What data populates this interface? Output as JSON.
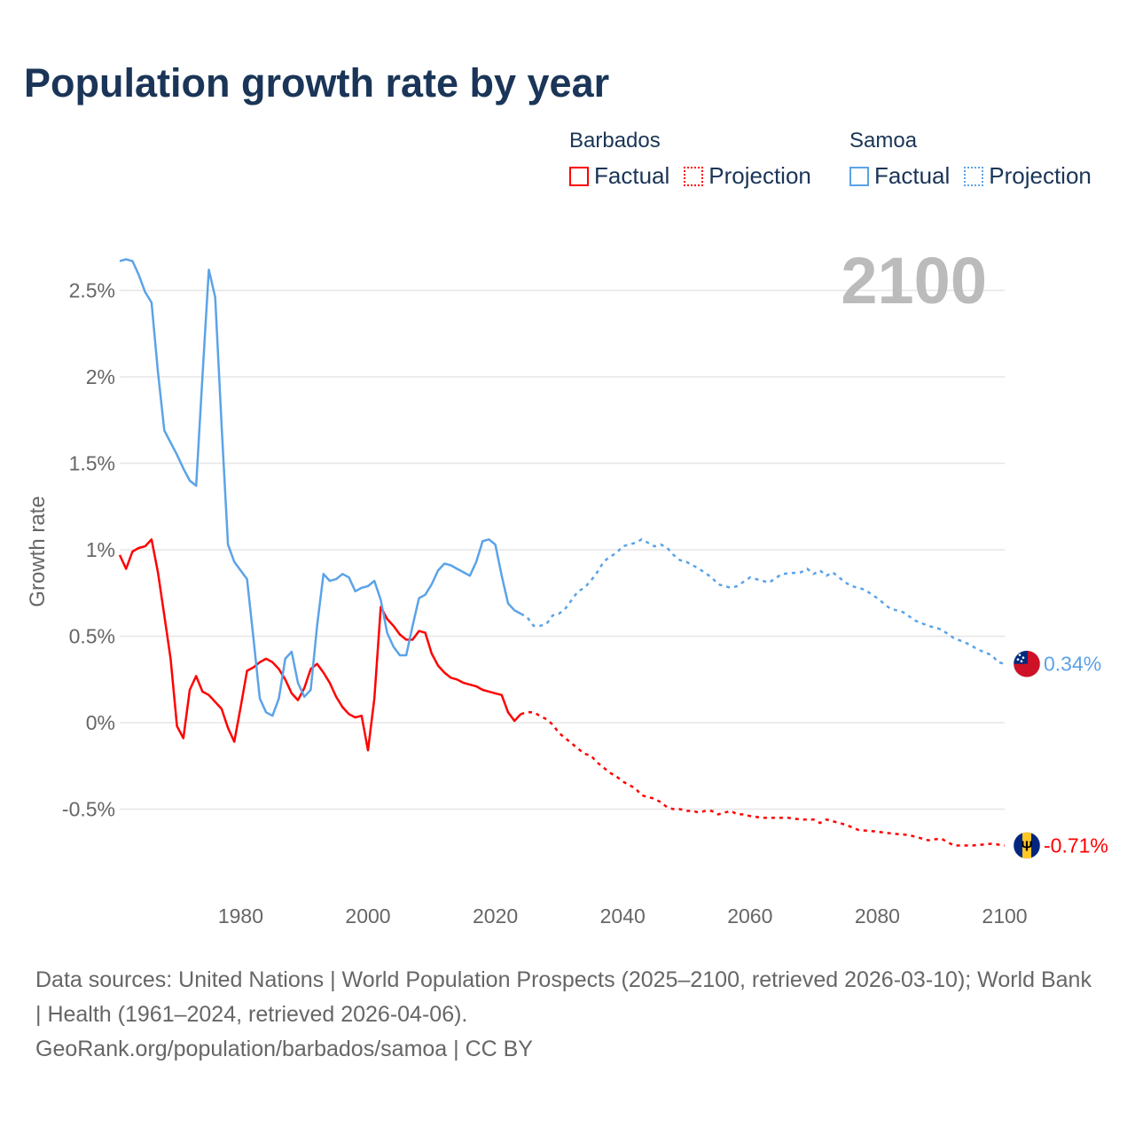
{
  "title": "Population growth rate by year",
  "legend": {
    "groups": [
      {
        "name": "Barbados",
        "color": "#ff0000",
        "items": [
          "Factual",
          "Projection"
        ]
      },
      {
        "name": "Samoa",
        "color": "#5ba3e8",
        "items": [
          "Factual",
          "Projection"
        ]
      }
    ]
  },
  "year_label": "2100",
  "footer": {
    "sources": "Data sources: United Nations | World Population Prospects (2025–2100, retrieved 2026-03-10); World Bank | Health (1961–2024, retrieved 2026-04-06).",
    "credit": "GeoRank.org/population/barbados/samoa | CC BY"
  },
  "chart_data": {
    "type": "line",
    "title": "Population growth rate by year",
    "xlabel": "",
    "ylabel": "Growth rate",
    "xlim": [
      1961,
      2100
    ],
    "ylim": [
      -0.85,
      2.75
    ],
    "x_ticks": [
      1980,
      2000,
      2020,
      2040,
      2060,
      2080,
      2100
    ],
    "x_tick_labels": [
      "1980",
      "2000",
      "2020",
      "2040",
      "2060",
      "2080",
      "2100"
    ],
    "y_ticks": [
      -0.5,
      0,
      0.5,
      1,
      1.5,
      2,
      2.5
    ],
    "y_tick_labels": [
      "-0.5%",
      "0%",
      "0.5%",
      "1%",
      "1.5%",
      "2%",
      "2.5%"
    ],
    "grid": true,
    "legend_position": "top-right",
    "series": [
      {
        "name": "Barbados",
        "color": "#ff0000",
        "end_label": "-0.71%",
        "factual": {
          "x": [
            1961,
            1962,
            1963,
            1964,
            1965,
            1966,
            1967,
            1968,
            1969,
            1970,
            1971,
            1972,
            1973,
            1974,
            1975,
            1976,
            1977,
            1978,
            1979,
            1980,
            1981,
            1982,
            1983,
            1984,
            1985,
            1986,
            1987,
            1988,
            1989,
            1990,
            1991,
            1992,
            1993,
            1994,
            1995,
            1996,
            1997,
            1998,
            1999,
            2000,
            2001,
            2002,
            2003,
            2004,
            2005,
            2006,
            2007,
            2008,
            2009,
            2010,
            2011,
            2012,
            2013,
            2014,
            2015,
            2016,
            2017,
            2018,
            2019,
            2020,
            2021,
            2022,
            2023,
            2024
          ],
          "y": [
            0.97,
            0.89,
            0.99,
            1.01,
            1.02,
            1.06,
            0.87,
            0.62,
            0.37,
            -0.02,
            -0.09,
            0.19,
            0.27,
            0.18,
            0.16,
            0.12,
            0.08,
            -0.03,
            -0.11,
            0.09,
            0.3,
            0.32,
            0.35,
            0.37,
            0.35,
            0.31,
            0.25,
            0.17,
            0.13,
            0.2,
            0.31,
            0.34,
            0.29,
            0.23,
            0.15,
            0.09,
            0.05,
            0.03,
            0.04,
            -0.16,
            0.14,
            0.67,
            0.6,
            0.56,
            0.51,
            0.48,
            0.48,
            0.53,
            0.52,
            0.4,
            0.33,
            0.29,
            0.26,
            0.25,
            0.23,
            0.22,
            0.21,
            0.19,
            0.18,
            0.17,
            0.16,
            0.06,
            0.01,
            0.05
          ]
        },
        "projection": {
          "x": [
            2024,
            2025,
            2026,
            2027,
            2028,
            2029,
            2030,
            2031,
            2032,
            2033,
            2034,
            2035,
            2036,
            2037,
            2038,
            2039,
            2040,
            2041,
            2042,
            2043,
            2044,
            2045,
            2046,
            2047,
            2048,
            2049,
            2050,
            2051,
            2052,
            2053,
            2054,
            2055,
            2056,
            2057,
            2058,
            2059,
            2060,
            2062,
            2064,
            2066,
            2068,
            2070,
            2071,
            2072,
            2074,
            2075,
            2077,
            2080,
            2082,
            2085,
            2088,
            2090,
            2092,
            2095,
            2098,
            2100
          ],
          "y": [
            0.05,
            0.06,
            0.06,
            0.04,
            0.02,
            -0.01,
            -0.06,
            -0.09,
            -0.12,
            -0.15,
            -0.18,
            -0.19,
            -0.23,
            -0.26,
            -0.29,
            -0.31,
            -0.34,
            -0.36,
            -0.38,
            -0.42,
            -0.43,
            -0.44,
            -0.46,
            -0.49,
            -0.5,
            -0.5,
            -0.51,
            -0.51,
            -0.52,
            -0.51,
            -0.51,
            -0.53,
            -0.52,
            -0.51,
            -0.53,
            -0.53,
            -0.54,
            -0.55,
            -0.55,
            -0.55,
            -0.56,
            -0.56,
            -0.58,
            -0.56,
            -0.58,
            -0.59,
            -0.62,
            -0.63,
            -0.64,
            -0.65,
            -0.68,
            -0.67,
            -0.71,
            -0.71,
            -0.7,
            -0.71
          ]
        }
      },
      {
        "name": "Samoa",
        "color": "#5ba3e8",
        "end_label": "0.34%",
        "factual": {
          "x": [
            1961,
            1962,
            1963,
            1964,
            1965,
            1966,
            1967,
            1968,
            1969,
            1970,
            1971,
            1972,
            1973,
            1974,
            1975,
            1976,
            1977,
            1978,
            1979,
            1980,
            1981,
            1982,
            1983,
            1984,
            1985,
            1986,
            1987,
            1988,
            1989,
            1990,
            1991,
            1992,
            1993,
            1994,
            1995,
            1996,
            1997,
            1998,
            1999,
            2000,
            2001,
            2002,
            2003,
            2004,
            2005,
            2006,
            2007,
            2008,
            2009,
            2010,
            2011,
            2012,
            2013,
            2014,
            2015,
            2016,
            2017,
            2018,
            2019,
            2020,
            2021,
            2022,
            2023,
            2024
          ],
          "y": [
            2.67,
            2.68,
            2.67,
            2.59,
            2.49,
            2.43,
            2.03,
            1.69,
            1.62,
            1.55,
            1.47,
            1.4,
            1.37,
            2.0,
            2.62,
            2.46,
            1.72,
            1.03,
            0.93,
            0.88,
            0.83,
            0.49,
            0.14,
            0.06,
            0.04,
            0.14,
            0.37,
            0.41,
            0.23,
            0.15,
            0.19,
            0.56,
            0.86,
            0.82,
            0.83,
            0.86,
            0.84,
            0.76,
            0.78,
            0.79,
            0.82,
            0.71,
            0.52,
            0.44,
            0.39,
            0.39,
            0.56,
            0.72,
            0.74,
            0.8,
            0.88,
            0.92,
            0.91,
            0.89,
            0.87,
            0.85,
            0.93,
            1.05,
            1.06,
            1.03,
            0.85,
            0.69,
            0.65,
            0.63
          ]
        },
        "projection": {
          "x": [
            2024,
            2025,
            2026,
            2027,
            2028,
            2029,
            2030,
            2031,
            2032,
            2033,
            2034,
            2035,
            2036,
            2037,
            2038,
            2039,
            2040,
            2041,
            2042,
            2043,
            2044,
            2045,
            2046,
            2047,
            2048,
            2049,
            2050,
            2052,
            2054,
            2055,
            2057,
            2058,
            2060,
            2062,
            2063,
            2065,
            2068,
            2069,
            2070,
            2071,
            2072,
            2073,
            2075,
            2076,
            2078,
            2080,
            2082,
            2084,
            2086,
            2088,
            2090,
            2092,
            2094,
            2096,
            2098,
            2099,
            2100
          ],
          "y": [
            0.63,
            0.61,
            0.56,
            0.56,
            0.57,
            0.62,
            0.63,
            0.66,
            0.71,
            0.76,
            0.78,
            0.82,
            0.87,
            0.93,
            0.96,
            0.98,
            1.02,
            1.03,
            1.04,
            1.06,
            1.04,
            1.02,
            1.03,
            1.01,
            0.97,
            0.94,
            0.93,
            0.89,
            0.84,
            0.8,
            0.78,
            0.79,
            0.84,
            0.82,
            0.81,
            0.86,
            0.87,
            0.89,
            0.86,
            0.88,
            0.85,
            0.87,
            0.81,
            0.79,
            0.77,
            0.72,
            0.66,
            0.64,
            0.59,
            0.56,
            0.54,
            0.49,
            0.46,
            0.42,
            0.39,
            0.35,
            0.34
          ]
        }
      }
    ]
  }
}
